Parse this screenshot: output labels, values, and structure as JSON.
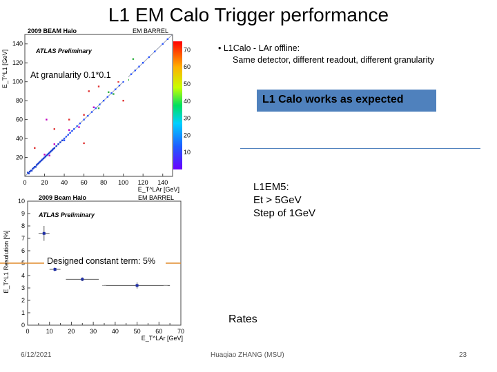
{
  "slide": {
    "title": "L1 EM Calo Trigger performance",
    "bullet_line1": "• L1Calo - LAr offline:",
    "bullet_line2": "Same detector, different readout, different granularity",
    "highlight": "L1 Calo works as expected",
    "trigger_lines": [
      "L1EM5:",
      "Et > 5GeV",
      "Step of 1GeV"
    ],
    "rates": "Rates",
    "footer_date": "6/12/2021",
    "footer_author": "Huaqiao ZHANG (MSU)",
    "footer_page": "23"
  },
  "chart_data": [
    {
      "type": "scatter",
      "style": "2D histogram",
      "header_left": "2009 BEAM Halo",
      "header_right": "EM BARREL",
      "watermark": "ATLAS Preliminary",
      "annotation": "At granularity 0.1*0.1",
      "xlabel": "E_T^LAr [GeV]",
      "ylabel": "E_T^L1 [GeV]",
      "xlim": [
        0,
        150
      ],
      "ylim": [
        0,
        150
      ],
      "xticks": [
        0,
        20,
        40,
        60,
        80,
        100,
        120,
        140
      ],
      "yticks": [
        20,
        40,
        60,
        80,
        100,
        120,
        140
      ],
      "colorbar": {
        "min": 0,
        "max": 75,
        "ticks": [
          10,
          20,
          30,
          40,
          50,
          60,
          70
        ]
      },
      "points": [
        [
          3,
          4
        ],
        [
          4,
          3
        ],
        [
          5,
          5
        ],
        [
          6,
          6
        ],
        [
          7,
          6
        ],
        [
          8,
          8
        ],
        [
          9,
          9
        ],
        [
          10,
          10
        ],
        [
          11,
          10
        ],
        [
          12,
          12
        ],
        [
          13,
          13
        ],
        [
          14,
          14
        ],
        [
          15,
          15
        ],
        [
          16,
          16
        ],
        [
          17,
          17
        ],
        [
          18,
          18
        ],
        [
          19,
          19
        ],
        [
          20,
          20
        ],
        [
          21,
          21
        ],
        [
          22,
          22
        ],
        [
          23,
          23
        ],
        [
          24,
          24
        ],
        [
          25,
          25
        ],
        [
          26,
          26
        ],
        [
          27,
          27
        ],
        [
          28,
          28
        ],
        [
          29,
          29
        ],
        [
          30,
          30
        ],
        [
          32,
          32
        ],
        [
          34,
          34
        ],
        [
          36,
          36
        ],
        [
          38,
          38
        ],
        [
          40,
          40
        ],
        [
          42,
          42
        ],
        [
          44,
          44
        ],
        [
          46,
          46
        ],
        [
          48,
          48
        ],
        [
          50,
          50
        ],
        [
          53,
          53
        ],
        [
          56,
          56
        ],
        [
          60,
          60
        ],
        [
          64,
          64
        ],
        [
          68,
          68
        ],
        [
          72,
          72
        ],
        [
          76,
          76
        ],
        [
          80,
          80
        ],
        [
          84,
          84
        ],
        [
          88,
          88
        ],
        [
          92,
          92
        ],
        [
          96,
          96
        ],
        [
          100,
          100
        ],
        [
          104,
          104
        ],
        [
          108,
          108
        ],
        [
          112,
          112
        ],
        [
          116,
          116
        ],
        [
          120,
          120
        ],
        [
          126,
          126
        ],
        [
          132,
          132
        ],
        [
          140,
          140
        ],
        [
          145,
          145
        ],
        [
          20,
          23
        ],
        [
          25,
          22
        ],
        [
          30,
          34
        ],
        [
          40,
          38
        ],
        [
          45,
          49
        ],
        [
          55,
          52
        ],
        [
          60,
          65
        ],
        [
          70,
          73
        ],
        [
          75,
          72
        ],
        [
          85,
          89
        ],
        [
          90,
          87
        ],
        [
          95,
          100
        ],
        [
          105,
          102
        ],
        [
          65,
          90
        ],
        [
          30,
          50
        ],
        [
          100,
          80
        ],
        [
          110,
          124
        ],
        [
          75,
          95
        ],
        [
          22,
          60
        ],
        [
          60,
          35
        ],
        [
          10,
          30
        ],
        [
          45,
          60
        ]
      ]
    },
    {
      "type": "scatter",
      "style": "points with error bars",
      "header_left": "2009 Beam Halo",
      "header_right": "EM BARREL",
      "watermark": "ATLAS Preliminary",
      "annotation": "Designed constant term: 5%",
      "xlabel": "E_T^LAr [GeV]",
      "ylabel": "E_T^L1 Resolution [%]",
      "xlim": [
        0,
        70
      ],
      "ylim": [
        0,
        10
      ],
      "xticks": [
        0,
        5,
        10,
        15,
        20,
        25,
        30,
        35,
        40,
        45,
        50,
        55,
        60,
        65,
        70
      ],
      "yticks": [
        0,
        1,
        2,
        3,
        4,
        5,
        6,
        7,
        8,
        9,
        10
      ],
      "reference_line": 5,
      "series": [
        {
          "x": [
            7.5,
            12.5,
            25,
            50
          ],
          "y": [
            7.4,
            4.5,
            3.7,
            3.2
          ],
          "xerr": [
            2.5,
            2.5,
            7.5,
            15
          ],
          "yerr": [
            0.6,
            0.15,
            0.15,
            0.25
          ]
        }
      ],
      "extra_points": [
        [
          35,
          3.2
        ],
        [
          63,
          3.2
        ]
      ]
    }
  ]
}
